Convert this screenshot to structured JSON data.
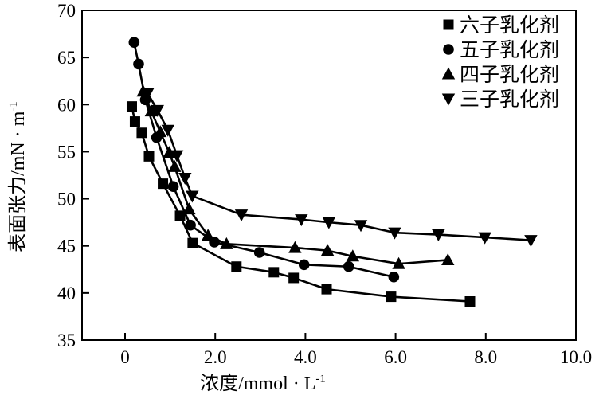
{
  "figure": {
    "background": "#ffffff",
    "ink_color": "#000000"
  },
  "y_axis": {
    "title_base": "表面张力/mN · m",
    "title_sup": "-1",
    "ticks": [
      35,
      40,
      45,
      50,
      55,
      60,
      65,
      70
    ],
    "tick_labels": [
      "35",
      "40",
      "45",
      "50",
      "55",
      "60",
      "65",
      "70"
    ]
  },
  "x_axis": {
    "title_base": "浓度/mmol · L",
    "title_sup": "-1",
    "ticks": [
      0,
      2,
      4,
      6,
      8,
      10
    ],
    "tick_labels": [
      "0",
      "2.0",
      "4.0",
      "6.0",
      "8.0",
      "10.0"
    ]
  },
  "legend": {
    "position": "top-right",
    "items": [
      {
        "glyph": "square",
        "label": "六子乳化剂"
      },
      {
        "glyph": "circle",
        "label": "五子乳化剂"
      },
      {
        "glyph": "triangle-up",
        "label": "四子乳化剂"
      },
      {
        "glyph": "triangle-down",
        "label": "三子乳化剂"
      }
    ]
  },
  "chart_data": {
    "type": "line",
    "title": "",
    "xlabel": "浓度/mmol·L⁻¹",
    "ylabel": "表面张力/mN·m⁻¹",
    "xlim": [
      0,
      10
    ],
    "ylim": [
      35,
      70
    ],
    "grid": false,
    "legend_position": "top-right",
    "x_tick_labels": [
      "0",
      "2.0",
      "4.0",
      "6.0",
      "8.0",
      "10.0"
    ],
    "y_tick_labels": [
      "35",
      "40",
      "45",
      "50",
      "55",
      "60",
      "65",
      "70"
    ],
    "series": [
      {
        "name": "六子乳化剂",
        "marker": "square",
        "points": [
          [
            0.15,
            59.8
          ],
          [
            0.22,
            58.2
          ],
          [
            0.37,
            57.0
          ],
          [
            0.53,
            54.5
          ],
          [
            0.84,
            51.6
          ],
          [
            1.22,
            48.2
          ],
          [
            1.5,
            45.3
          ],
          [
            2.47,
            42.8
          ],
          [
            3.3,
            42.2
          ],
          [
            3.74,
            41.6
          ],
          [
            4.47,
            40.4
          ],
          [
            5.9,
            39.6
          ],
          [
            7.65,
            39.1
          ]
        ]
      },
      {
        "name": "五子乳化剂",
        "marker": "circle",
        "points": [
          [
            0.2,
            66.6
          ],
          [
            0.3,
            64.3
          ],
          [
            0.45,
            60.5
          ],
          [
            0.7,
            56.5
          ],
          [
            1.07,
            51.3
          ],
          [
            1.45,
            47.2
          ],
          [
            1.98,
            45.4
          ],
          [
            2.98,
            44.3
          ],
          [
            3.97,
            43.0
          ],
          [
            4.96,
            42.8
          ],
          [
            5.96,
            41.7
          ]
        ]
      },
      {
        "name": "四子乳化剂",
        "marker": "triangle-up",
        "points": [
          [
            0.4,
            61.4
          ],
          [
            0.58,
            59.3
          ],
          [
            0.78,
            57.1
          ],
          [
            0.98,
            54.9
          ],
          [
            1.1,
            53.4
          ],
          [
            1.42,
            48.9
          ],
          [
            1.84,
            46.1
          ],
          [
            2.25,
            45.2
          ],
          [
            3.77,
            44.8
          ],
          [
            4.49,
            44.5
          ],
          [
            5.05,
            43.9
          ],
          [
            6.07,
            43.1
          ],
          [
            7.16,
            43.5
          ]
        ]
      },
      {
        "name": "三子乳化剂",
        "marker": "triangle-down",
        "points": [
          [
            0.5,
            61.2
          ],
          [
            0.72,
            59.4
          ],
          [
            0.95,
            57.3
          ],
          [
            1.15,
            54.6
          ],
          [
            1.33,
            52.2
          ],
          [
            1.49,
            50.3
          ],
          [
            2.58,
            48.3
          ],
          [
            3.91,
            47.8
          ],
          [
            4.52,
            47.5
          ],
          [
            5.23,
            47.2
          ],
          [
            5.98,
            46.4
          ],
          [
            6.95,
            46.2
          ],
          [
            7.98,
            45.9
          ],
          [
            9.0,
            45.6
          ]
        ]
      }
    ]
  }
}
